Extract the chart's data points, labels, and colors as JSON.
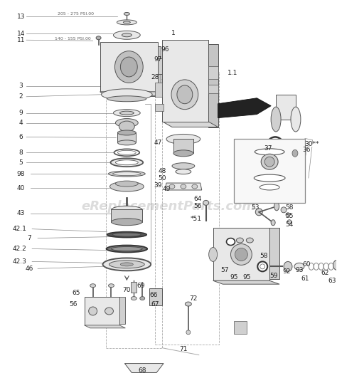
{
  "background_color": "#ffffff",
  "watermark_text": "eReplacementParts.com",
  "watermark_color": "#bbbbbb",
  "watermark_alpha": 0.5,
  "watermark_fontsize": 13,
  "fig_width": 4.74,
  "fig_height": 5.31,
  "dpi": 100,
  "label_fontsize": 6.5,
  "label_color": "#222222",
  "spec1": "205 - 275 PSI.00",
  "spec2": "140 - 155 PSI.00"
}
